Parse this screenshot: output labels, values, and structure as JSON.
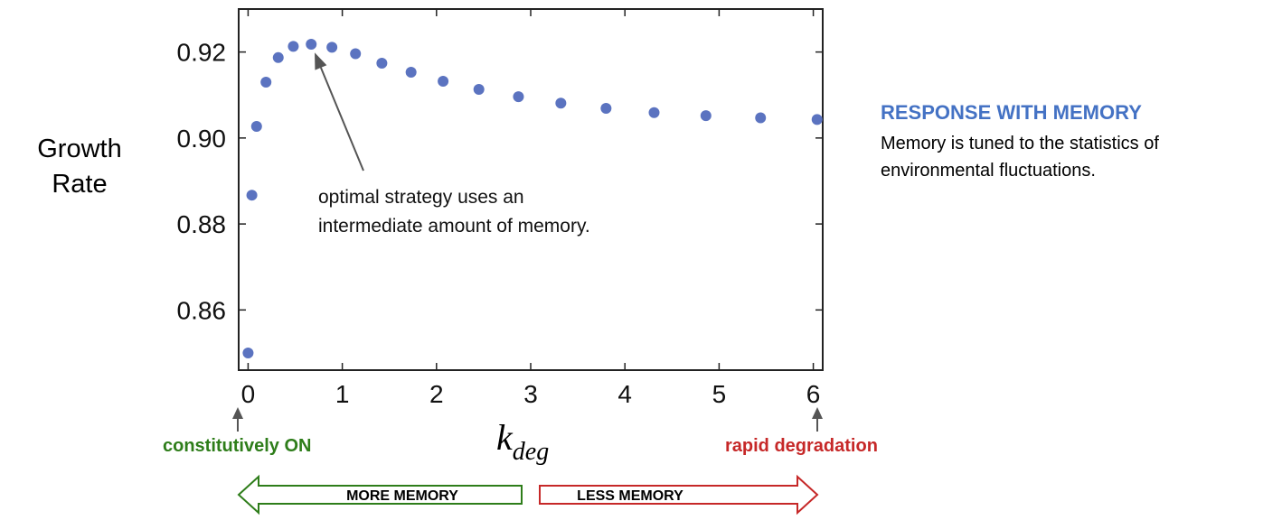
{
  "chart_data": {
    "type": "scatter",
    "ylabel_lines": [
      "Growth",
      "Rate"
    ],
    "xlabel_main": "k",
    "xlabel_sub": "deg",
    "xlim": [
      -0.1,
      6.1
    ],
    "ylim": [
      0.846,
      0.93
    ],
    "xticks": [
      0,
      1,
      2,
      3,
      4,
      5,
      6
    ],
    "yticks": [
      0.86,
      0.88,
      0.9,
      0.92
    ],
    "ytick_labels": [
      "0.86",
      "0.88",
      "0.90",
      "0.92"
    ],
    "point_color": "#5b73c0",
    "points": [
      {
        "x": 0.0,
        "y": 0.85
      },
      {
        "x": 0.04,
        "y": 0.8867
      },
      {
        "x": 0.09,
        "y": 0.9027
      },
      {
        "x": 0.19,
        "y": 0.913
      },
      {
        "x": 0.32,
        "y": 0.9187
      },
      {
        "x": 0.48,
        "y": 0.9213
      },
      {
        "x": 0.67,
        "y": 0.9218
      },
      {
        "x": 0.89,
        "y": 0.9211
      },
      {
        "x": 1.14,
        "y": 0.9196
      },
      {
        "x": 1.42,
        "y": 0.9174
      },
      {
        "x": 1.73,
        "y": 0.9153
      },
      {
        "x": 2.07,
        "y": 0.9132
      },
      {
        "x": 2.45,
        "y": 0.9113
      },
      {
        "x": 2.87,
        "y": 0.9096
      },
      {
        "x": 3.32,
        "y": 0.9081
      },
      {
        "x": 3.8,
        "y": 0.9069
      },
      {
        "x": 4.31,
        "y": 0.9059
      },
      {
        "x": 4.86,
        "y": 0.9052
      },
      {
        "x": 5.44,
        "y": 0.9047
      },
      {
        "x": 6.04,
        "y": 0.9043
      }
    ],
    "annotation": {
      "lines": [
        "optimal strategy uses an",
        "intermediate amount of memory."
      ],
      "arrow_target_x": 0.67,
      "arrow_target_y": 0.9218
    }
  },
  "side_panel": {
    "title": "RESPONSE WITH MEMORY",
    "title_color": "#4472c4",
    "body": "Memory is tuned to the statistics of environmental fluctuations."
  },
  "below_axis": {
    "left_label": "constitutively ON",
    "left_color": "#2e7d1a",
    "right_label": "rapid degradation",
    "right_color": "#c62828",
    "more_memory": "MORE MEMORY",
    "less_memory": "LESS MEMORY"
  }
}
